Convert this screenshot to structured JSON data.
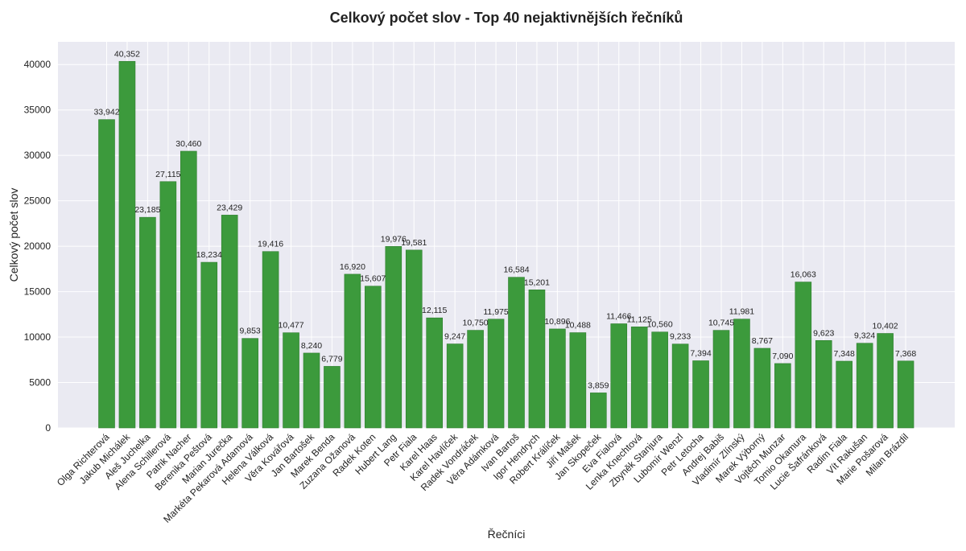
{
  "chart_data": {
    "type": "bar",
    "title": "Celkový počet slov - Top 40 nejaktivnějších řečníků",
    "xlabel": "Řečníci",
    "ylabel": "Celkový počet slov",
    "ylim": [
      0,
      42500
    ],
    "yticks": [
      0,
      5000,
      10000,
      15000,
      20000,
      25000,
      30000,
      35000,
      40000
    ],
    "ytick_labels": [
      "0",
      "5000",
      "10000",
      "15000",
      "20000",
      "25000",
      "30000",
      "35000",
      "40000"
    ],
    "grid": true,
    "bar_color": "#3c9a3c",
    "plot_background": "#eaeaf2",
    "categories": [
      "Olga Richterová",
      "Jakub Michálek",
      "Aleš Juchelka",
      "Alena Schillerová",
      "Patrik Nacher",
      "Berenika Peštová",
      "Marian Jurečka",
      "Markéta Pekarová Adamová",
      "Helena Válková",
      "Věra Kovářová",
      "Jan Bartošek",
      "Marek Benda",
      "Zuzana Ožanová",
      "Radek Koten",
      "Hubert Lang",
      "Petr Fiala",
      "Karel Haas",
      "Karel Havlíček",
      "Radek Vondráček",
      "Věra Adámková",
      "Ivan Bartoš",
      "Igor Hendrych",
      "Robert Králíček",
      "Jiří Mašek",
      "Jan Skopeček",
      "Eva Fialová",
      "Lenka Knechtová",
      "Zbyněk Stanjura",
      "Lubomír Wenzl",
      "Petr Letocha",
      "Andrej Babiš",
      "Vladimír Zlínský",
      "Marek Výborný",
      "Vojtěch Munzar",
      "Tomio Okamura",
      "Lucie Šafránková",
      "Radim Fiala",
      "Vít Rakušan",
      "Marie Pošarová",
      "Milan Brázdil"
    ],
    "values": [
      33942,
      40352,
      23185,
      27115,
      30460,
      18234,
      23429,
      9853,
      19416,
      10477,
      8240,
      6779,
      16920,
      15607,
      19976,
      19581,
      12115,
      9247,
      10750,
      11975,
      16584,
      15201,
      10896,
      10488,
      3859,
      11466,
      11125,
      10560,
      9233,
      7394,
      10745,
      11981,
      8767,
      7090,
      16063,
      9623,
      7348,
      9324,
      10402,
      7368
    ],
    "data_labels": [
      "33,942",
      "40,352",
      "23,185",
      "27,115",
      "30,460",
      "18,234",
      "23,429",
      "9,853",
      "19,416",
      "10,477",
      "8,240",
      "6,779",
      "16,920",
      "15,607",
      "19,976",
      "19,581",
      "12,115",
      "9,247",
      "10,750",
      "11,975",
      "16,584",
      "15,201",
      "10,896",
      "10,488",
      "3,859",
      "11,466",
      "11,125",
      "10,560",
      "9,233",
      "7,394",
      "10,745",
      "11,981",
      "8,767",
      "7,090",
      "16,063",
      "9,623",
      "7,348",
      "9,324",
      "10,402",
      "7,368"
    ]
  }
}
